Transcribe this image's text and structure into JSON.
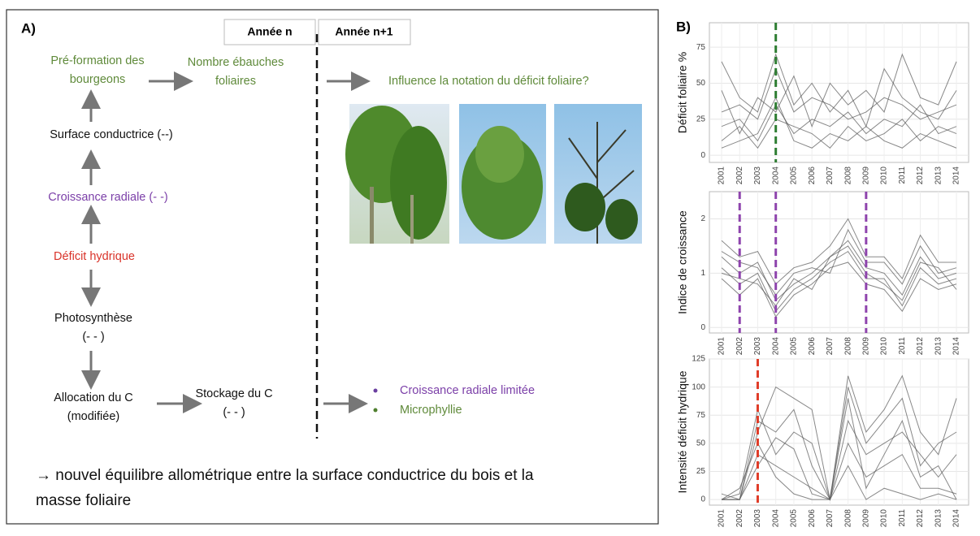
{
  "diagram": {
    "panel_label": "A)",
    "headers": [
      "Année n",
      "Année n+1"
    ],
    "nodes": [
      {
        "lines": [
          "Pré-formation des",
          "bourgeons"
        ]
      },
      {
        "lines": [
          "Nombre ébauches",
          "foliaires"
        ]
      },
      {
        "lines": [
          "Influence la notation du déficit foliaire?"
        ]
      },
      {
        "lines": [
          "Surface conductrice (--)"
        ]
      },
      {
        "lines": [
          "Croissance radiale (- -)"
        ]
      },
      {
        "lines": [
          "Déficit hydrique"
        ]
      },
      {
        "lines": [
          "Photosynthèse",
          "(- - )"
        ]
      },
      {
        "lines": [
          "Allocation du C",
          "(modifiée)"
        ]
      },
      {
        "lines": [
          "Stockage du C",
          "(- - )"
        ]
      }
    ],
    "bullets": [
      "Croissance radiale limitée",
      "Microphyllie"
    ],
    "conclusion": [
      "→ nouvel équilibre allométrique entre la surface conductrice du bois et la",
      "masse foliaire"
    ]
  },
  "panel_b_label": "B)",
  "chart_data": [
    {
      "type": "line",
      "ylabel": "Déficit foliaire %",
      "categories": [
        "2001",
        "2002",
        "2003",
        "2004",
        "2005",
        "2006",
        "2007",
        "2008",
        "2009",
        "2010",
        "2011",
        "2012",
        "2013",
        "2014"
      ],
      "ylim": [
        -5,
        92
      ],
      "yticks": [
        0,
        25,
        50,
        75
      ],
      "markers": [
        {
          "x": "2004",
          "color": "#2e7d32"
        }
      ],
      "series": [
        {
          "color": "#555555",
          "values": [
            65,
            40,
            30,
            70,
            35,
            50,
            30,
            45,
            20,
            60,
            40,
            30,
            25,
            45
          ]
        },
        {
          "color": "#555555",
          "values": [
            20,
            25,
            10,
            35,
            15,
            25,
            20,
            30,
            15,
            25,
            20,
            35,
            15,
            20
          ]
        },
        {
          "color": "#555555",
          "values": [
            5,
            10,
            15,
            40,
            10,
            5,
            15,
            10,
            20,
            10,
            5,
            15,
            10,
            5
          ]
        },
        {
          "color": "#555555",
          "values": [
            30,
            35,
            25,
            60,
            30,
            40,
            35,
            25,
            30,
            40,
            35,
            25,
            30,
            35
          ]
        },
        {
          "color": "#555555",
          "values": [
            45,
            15,
            40,
            30,
            55,
            20,
            50,
            35,
            45,
            30,
            70,
            40,
            35,
            65
          ]
        },
        {
          "color": "#555555",
          "values": [
            10,
            20,
            5,
            25,
            20,
            15,
            5,
            20,
            10,
            15,
            25,
            10,
            20,
            15
          ]
        }
      ]
    },
    {
      "type": "line",
      "ylabel": "Indice de croissance",
      "categories": [
        "2001",
        "2002",
        "2003",
        "2004",
        "2005",
        "2006",
        "2007",
        "2008",
        "2009",
        "2010",
        "2011",
        "2012",
        "2013",
        "2014"
      ],
      "ylim": [
        -0.1,
        2.5
      ],
      "yticks": [
        0,
        1,
        2
      ],
      "markers": [
        {
          "x": "2002",
          "color": "#8e44ad"
        },
        {
          "x": "2004",
          "color": "#8e44ad"
        },
        {
          "x": "2009",
          "color": "#8e44ad"
        }
      ],
      "series": [
        {
          "color": "#555555",
          "values": [
            1.3,
            1.0,
            1.2,
            0.5,
            0.8,
            1.0,
            1.3,
            1.6,
            1.1,
            1.0,
            0.6,
            1.3,
            0.9,
            1.0
          ]
        },
        {
          "color": "#555555",
          "values": [
            1.1,
            0.8,
            1.0,
            0.3,
            0.7,
            0.9,
            1.2,
            1.4,
            0.9,
            0.9,
            0.4,
            1.1,
            0.8,
            0.9
          ]
        },
        {
          "color": "#555555",
          "values": [
            1.4,
            1.2,
            1.1,
            0.6,
            1.0,
            1.1,
            1.0,
            1.8,
            1.2,
            1.2,
            0.8,
            1.5,
            1.0,
            1.1
          ]
        },
        {
          "color": "#555555",
          "values": [
            0.9,
            0.6,
            0.9,
            0.2,
            0.6,
            0.8,
            1.1,
            1.2,
            0.8,
            0.7,
            0.3,
            0.9,
            0.7,
            0.8
          ]
        },
        {
          "color": "#555555",
          "values": [
            1.6,
            1.3,
            1.4,
            0.8,
            1.1,
            1.2,
            1.5,
            2.0,
            1.3,
            1.3,
            0.9,
            1.7,
            1.2,
            1.2
          ]
        },
        {
          "color": "#555555",
          "values": [
            1.0,
            0.9,
            0.8,
            0.4,
            0.9,
            0.7,
            1.3,
            1.5,
            1.0,
            0.8,
            0.5,
            1.2,
            1.1,
            0.7
          ]
        }
      ]
    },
    {
      "type": "line",
      "ylabel": "Intensité déficit hydrique",
      "categories": [
        "2001",
        "2002",
        "2003",
        "2004",
        "2005",
        "2006",
        "2007",
        "2008",
        "2009",
        "2010",
        "2011",
        "2012",
        "2013",
        "2014"
      ],
      "ylim": [
        -5,
        125
      ],
      "yticks": [
        0,
        25,
        50,
        75,
        100,
        125
      ],
      "markers": [
        {
          "x": "2003",
          "color": "#e03c28"
        }
      ],
      "series": [
        {
          "color": "#555555",
          "values": [
            0,
            0,
            60,
            100,
            90,
            80,
            0,
            110,
            60,
            80,
            110,
            60,
            40,
            90
          ]
        },
        {
          "color": "#555555",
          "values": [
            0,
            5,
            80,
            40,
            60,
            50,
            0,
            70,
            40,
            50,
            60,
            40,
            20,
            40
          ]
        },
        {
          "color": "#555555",
          "values": [
            0,
            0,
            40,
            30,
            20,
            10,
            0,
            50,
            20,
            30,
            40,
            10,
            10,
            5
          ]
        },
        {
          "color": "#555555",
          "values": [
            5,
            0,
            30,
            55,
            45,
            5,
            0,
            90,
            10,
            40,
            70,
            20,
            30,
            0
          ]
        },
        {
          "color": "#555555",
          "values": [
            0,
            10,
            50,
            20,
            5,
            0,
            0,
            30,
            0,
            10,
            5,
            0,
            5,
            0
          ]
        },
        {
          "color": "#555555",
          "values": [
            0,
            0,
            70,
            60,
            80,
            30,
            0,
            100,
            50,
            70,
            90,
            30,
            50,
            60
          ]
        }
      ]
    }
  ]
}
